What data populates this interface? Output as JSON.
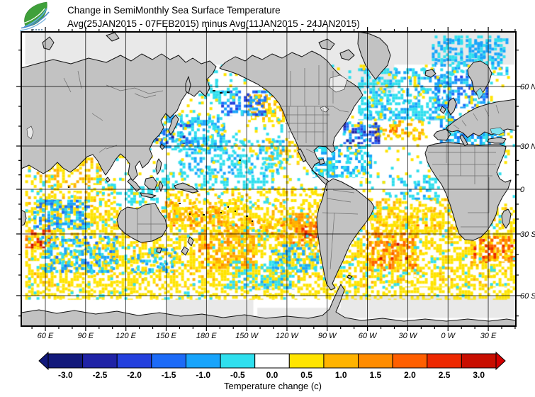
{
  "header": {
    "title": "Change in SemiMonthly Sea Surface Temperature",
    "subtitle": "Avg(25JAN2015 - 07FEB2015) minus Avg(11JAN2015 - 24JAN2015)"
  },
  "chart_data": {
    "type": "heatmap",
    "title": "Change in SemiMonthly Sea Surface Temperature",
    "subtitle": "Avg(25JAN2015 - 07FEB2015) minus Avg(11JAN2015 - 24JAN2015)",
    "projection": "world map, longitude 45E eastward wrapping to 45E, latitude 75N to 75S",
    "axes": {
      "lon_labels": [
        "60 E",
        "90 E",
        "120 E",
        "150 E",
        "180 E",
        "150 W",
        "120 W",
        "90 W",
        "60 W",
        "30 W",
        "0 W",
        "30 E"
      ],
      "lat_labels": [
        "60 N",
        "30 N",
        "0",
        "30 S",
        "60 S"
      ],
      "grid": true
    },
    "colorbar": {
      "label": "Temperature change  (c)",
      "tick_labels": [
        "-3.0",
        "-2.5",
        "-2.0",
        "-1.5",
        "-1.0",
        "-0.5",
        "0.0",
        "0.5",
        "1.0",
        "1.5",
        "2.0",
        "2.5",
        "3.0"
      ],
      "colors": [
        "#12197b",
        "#2023a6",
        "#2440dd",
        "#1d6bf7",
        "#18a4fb",
        "#2fdfee",
        "#ffffff",
        "#ffe400",
        "#ffb300",
        "#ff8c00",
        "#ff5f00",
        "#ed2800",
        "#c80e00"
      ],
      "arrow_left_color": "#12197b",
      "arrow_right_color": "#d40000",
      "value_min": -3.25,
      "value_max": 3.25,
      "step": 0.5
    },
    "land_color": "#c2c2c2",
    "nodata_color": "#e9e9e9",
    "ocean_color": "#ffffff",
    "nodata_regions": [
      {
        "name": "arctic-ice",
        "lon": [
          45,
          410
        ],
        "lat": [
          66,
          77
        ]
      },
      {
        "name": "baffin-davis",
        "lon": [
          275,
          320
        ],
        "lat": [
          57,
          77
        ]
      },
      {
        "name": "weddell-atlantic-ice",
        "lon": [
          280,
          410
        ],
        "lat": [
          -71,
          -60
        ]
      },
      {
        "name": "ross-ice",
        "lon": [
          150,
          215
        ],
        "lat": [
          -72,
          -62
        ]
      },
      {
        "name": "bellingshausen-ice",
        "lon": [
          218,
          280
        ],
        "lat": [
          -73,
          -66
        ]
      }
    ],
    "regions": [
      {
        "name": "sh-yellow-band",
        "lon": [
          45,
          410
        ],
        "lat": [
          -56,
          -12
        ],
        "value": 0.55,
        "coverage": 0.5
      },
      {
        "name": "southern-ocean-yellow",
        "lon": [
          45,
          410
        ],
        "lat": [
          -62,
          -56
        ],
        "value": 0.5,
        "coverage": 0.42
      },
      {
        "name": "tropics-south-pacific",
        "lon": [
          150,
          285
        ],
        "lat": [
          -14,
          1
        ],
        "value": 0.55,
        "coverage": 0.34
      },
      {
        "name": "eq-indian-yellow",
        "lon": [
          45,
          112
        ],
        "lat": [
          -12,
          3
        ],
        "value": 0.6,
        "coverage": 0.4
      },
      {
        "name": "arabian-bengal-yellow",
        "lon": [
          45,
          100
        ],
        "lat": [
          3,
          22
        ],
        "value": 0.65,
        "coverage": 0.38
      },
      {
        "name": "s-atlantic-tropical",
        "lon": [
          300,
          382
        ],
        "lat": [
          -30,
          -6
        ],
        "value": 0.65,
        "coverage": 0.4
      },
      {
        "name": "ne-pacific-yellow",
        "lon": [
          211,
          238
        ],
        "lat": [
          42,
          56
        ],
        "value": 0.8,
        "coverage": 0.5
      },
      {
        "name": "baja-california-yellow",
        "lon": [
          224,
          250
        ],
        "lat": [
          17,
          34
        ],
        "value": 0.65,
        "coverage": 0.33
      },
      {
        "name": "mid-atlantic-orange",
        "lon": [
          304,
          341
        ],
        "lat": [
          33,
          43
        ],
        "value": 0.9,
        "coverage": 0.42
      },
      {
        "name": "coral-sea-yellow",
        "lon": [
          147,
          172
        ],
        "lat": [
          -22,
          -8
        ],
        "value": 0.9,
        "coverage": 0.4
      },
      {
        "name": "fiji-orange",
        "lon": [
          167,
          193
        ],
        "lat": [
          -25,
          -11
        ],
        "value": 1.2,
        "coverage": 0.45
      },
      {
        "name": "nz-east-orange",
        "lon": [
          174,
          216
        ],
        "lat": [
          -47,
          -27
        ],
        "value": 1.2,
        "coverage": 0.5
      },
      {
        "name": "central-sp-orange-streaks",
        "lon": [
          188,
          247
        ],
        "lat": [
          -33,
          -19
        ],
        "value": 1.0,
        "coverage": 0.35
      },
      {
        "name": "peru-chile-orange",
        "lon": [
          242,
          286
        ],
        "lat": [
          -36,
          -16
        ],
        "value": 1.3,
        "coverage": 0.6
      },
      {
        "name": "peru-chile-red-core",
        "lon": [
          251,
          276
        ],
        "lat": [
          -32,
          -22
        ],
        "value": 2.3,
        "coverage": 0.55
      },
      {
        "name": "argentina-orange",
        "lon": [
          299,
          336
        ],
        "lat": [
          -48,
          -29
        ],
        "value": 1.4,
        "coverage": 0.42
      },
      {
        "name": "brazil-red-spots",
        "lon": [
          309,
          331
        ],
        "lat": [
          -43,
          -33
        ],
        "value": 2.0,
        "coverage": 0.3
      },
      {
        "name": "agulhas-orange",
        "lon": [
          377,
          410
        ],
        "lat": [
          -44,
          -31
        ],
        "value": 1.7,
        "coverage": 0.45
      },
      {
        "name": "sw-indian-red-streak",
        "lon": [
          45,
          63
        ],
        "lat": [
          -37,
          -27
        ],
        "value": 2.1,
        "coverage": 0.45
      },
      {
        "name": "streak-24s",
        "lon": [
          45,
          410
        ],
        "lat": [
          -25,
          -23.6
        ],
        "value": 1.4,
        "coverage": 0.3
      },
      {
        "name": "atl-40n-red-spot",
        "lon": [
          314,
          326
        ],
        "lat": [
          36,
          41
        ],
        "value": 2.0,
        "coverage": 0.35
      },
      {
        "name": "nw-pacific-cool",
        "lon": [
          137,
          192
        ],
        "lat": [
          27,
          46
        ],
        "value": -0.75,
        "coverage": 0.5
      },
      {
        "name": "kuroshio-dark-blue",
        "lon": [
          139,
          168
        ],
        "lat": [
          31,
          41
        ],
        "value": -1.7,
        "coverage": 0.3
      },
      {
        "name": "n-pacific-central-cool",
        "lon": [
          158,
          237
        ],
        "lat": [
          11,
          33
        ],
        "value": -0.6,
        "coverage": 0.42
      },
      {
        "name": "eq-pacific-north-cyan",
        "lon": [
          148,
          235
        ],
        "lat": [
          0,
          12
        ],
        "value": -0.55,
        "coverage": 0.38
      },
      {
        "name": "gulf-alaska-blue",
        "lon": [
          191,
          223
        ],
        "lat": [
          45,
          58
        ],
        "value": -1.4,
        "coverage": 0.5
      },
      {
        "name": "bering-cool",
        "lon": [
          172,
          202
        ],
        "lat": [
          51,
          62
        ],
        "value": -0.5,
        "coverage": 0.3
      },
      {
        "name": "north-atlantic-cool",
        "lon": [
          293,
          362
        ],
        "lat": [
          43,
          65
        ],
        "value": -0.65,
        "coverage": 0.52
      },
      {
        "name": "gulf-stream-dark-blue",
        "lon": [
          282,
          308
        ],
        "lat": [
          31,
          42
        ],
        "value": -1.8,
        "coverage": 0.5
      },
      {
        "name": "caribbean-gulf-cool",
        "lon": [
          257,
          303
        ],
        "lat": [
          8,
          30
        ],
        "value": -0.7,
        "coverage": 0.45
      },
      {
        "name": "eq-atlantic-cyan",
        "lon": [
          316,
          354
        ],
        "lat": [
          -7,
          10
        ],
        "value": -0.6,
        "coverage": 0.33
      },
      {
        "name": "mediterranean-cool",
        "lon": [
          354,
          402
        ],
        "lat": [
          30,
          45
        ],
        "value": -0.9,
        "coverage": 0.6
      },
      {
        "name": "europe-shelf-blue",
        "lon": [
          350,
          390
        ],
        "lat": [
          49,
          63
        ],
        "value": -1.2,
        "coverage": 0.5
      },
      {
        "name": "norwegian-barents-cyan",
        "lon": [
          348,
          405
        ],
        "lat": [
          63,
          74
        ],
        "value": -0.7,
        "coverage": 0.42
      },
      {
        "name": "madagascar-east-blue",
        "lon": [
          51,
          92
        ],
        "lat": [
          -27,
          -7
        ],
        "value": -1.0,
        "coverage": 0.5
      },
      {
        "name": "s-indian-cool",
        "lon": [
          57,
          112
        ],
        "lat": [
          -49,
          -31
        ],
        "value": -0.9,
        "coverage": 0.4
      },
      {
        "name": "tasman-south-cool",
        "lon": [
          124,
          157
        ],
        "lat": [
          -49,
          -37
        ],
        "value": -0.7,
        "coverage": 0.35
      },
      {
        "name": "chile-south-cool",
        "lon": [
          228,
          263
        ],
        "lat": [
          -49,
          -35
        ],
        "value": -0.8,
        "coverage": 0.35
      },
      {
        "name": "sp-far-south-cool",
        "lon": [
          195,
          245
        ],
        "lat": [
          -57,
          -43
        ],
        "value": -0.6,
        "coverage": 0.3
      },
      {
        "name": "peru-coast-cyan",
        "lon": [
          268,
          287
        ],
        "lat": [
          -19,
          -4
        ],
        "value": -0.6,
        "coverage": 0.33
      },
      {
        "name": "indonesia-cyan",
        "lon": [
          98,
          152
        ],
        "lat": [
          -11,
          8
        ],
        "value": -0.5,
        "coverage": 0.22
      },
      {
        "name": "arctic-barents-specks",
        "lon": [
          350,
          400
        ],
        "lat": [
          66,
          73
        ],
        "value": -0.8,
        "coverage": 0.3
      },
      {
        "name": "global-speckle-cool",
        "lon": [
          45,
          410
        ],
        "lat": [
          -62,
          66
        ],
        "value": -0.45,
        "coverage": 0.05
      },
      {
        "name": "global-speckle-warm",
        "lon": [
          45,
          410
        ],
        "lat": [
          -62,
          66
        ],
        "value": 0.5,
        "coverage": 0.05
      }
    ]
  }
}
